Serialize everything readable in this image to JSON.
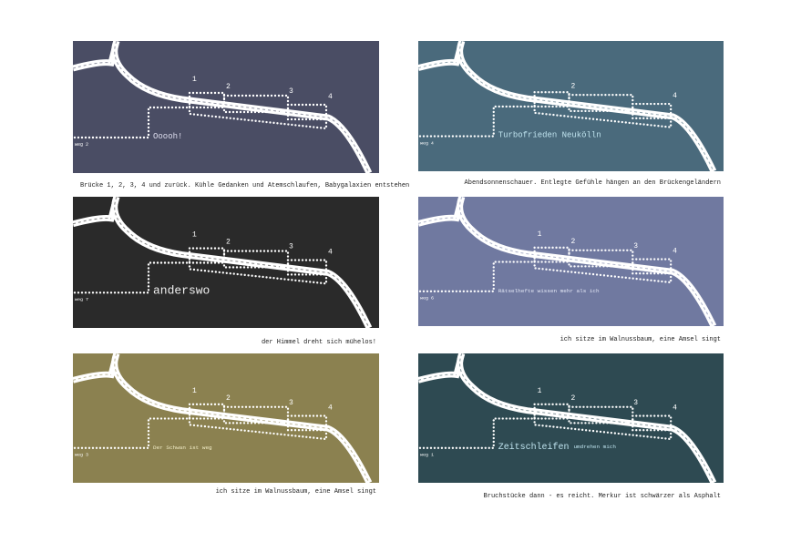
{
  "panels": [
    {
      "labels": [
        "1",
        "2",
        "3",
        "4"
      ],
      "main_text": "Ooooh!",
      "weg": "weg 2",
      "caption": "Brücke 1, 2, 3, 4 und zurück. Kühle Gedanken und Atemschlaufen, Babygalaxien entstehen"
    },
    {
      "labels": [
        null,
        "2",
        null,
        "4"
      ],
      "main_text": "Turbofrieden Neukölln",
      "weg": "weg 4",
      "caption": "Abendsonnenschauer. Entlegte Gefühle hängen an den Brückengeländern"
    },
    {
      "labels": [
        "1",
        "2",
        "3",
        "4"
      ],
      "main_text": "anderswo",
      "weg": "weg 7",
      "caption": "der Himmel dreht sich mühelos!"
    },
    {
      "labels": [
        "1",
        "2",
        "3",
        "4"
      ],
      "main_text": "Rätselhefte wissen mehr als ich",
      "weg": "weg 6",
      "caption": "ich sitze im Walnussbaum, eine Amsel singt"
    },
    {
      "labels": [
        "1",
        "2",
        "3",
        "4"
      ],
      "main_text": "Der Schwan ist weg",
      "weg": "weg 3",
      "caption": "ich sitze im Walnussbaum, eine Amsel singt"
    },
    {
      "labels": [
        "1",
        "2",
        "3",
        "4"
      ],
      "main_text": "Zeitschleifen",
      "sub_text": "umdrehen mich",
      "weg": "weg 1",
      "caption": "Bruchstücke dann - es reicht. Merkur ist schwärzer als Asphalt"
    }
  ]
}
